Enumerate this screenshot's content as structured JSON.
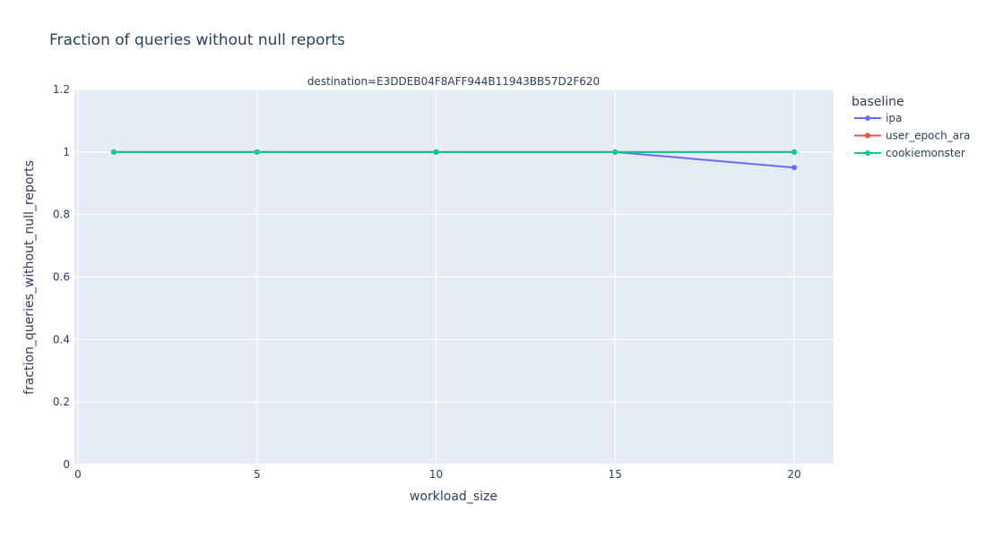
{
  "chart_data": {
    "type": "line",
    "title": "Fraction of queries without null reports",
    "facet_label": "destination=E3DDEB04F8AFF944B11943BB57D2F620",
    "xlabel": "workload_size",
    "ylabel": "fraction_queries_without_null_reports",
    "xlim": [
      -0.1,
      21.1
    ],
    "ylim": [
      0,
      1.2
    ],
    "x_ticks": [
      0,
      5,
      10,
      15,
      20
    ],
    "y_ticks": [
      0,
      0.2,
      0.4,
      0.6,
      0.8,
      1,
      1.2
    ],
    "grid": true,
    "legend": {
      "title": "baseline",
      "position": "right"
    },
    "series": [
      {
        "name": "ipa",
        "color": "#636efa",
        "x": [
          1,
          5,
          10,
          15,
          20
        ],
        "y": [
          1,
          1,
          1,
          1,
          0.95
        ]
      },
      {
        "name": "user_epoch_ara",
        "color": "#EF553B",
        "x": [
          1,
          5,
          10,
          15,
          20
        ],
        "y": [
          1,
          1,
          1,
          1,
          1
        ]
      },
      {
        "name": "cookiemonster",
        "color": "#00cc96",
        "x": [
          1,
          5,
          10,
          15,
          20
        ],
        "y": [
          1,
          1,
          1,
          1,
          1
        ]
      }
    ]
  }
}
